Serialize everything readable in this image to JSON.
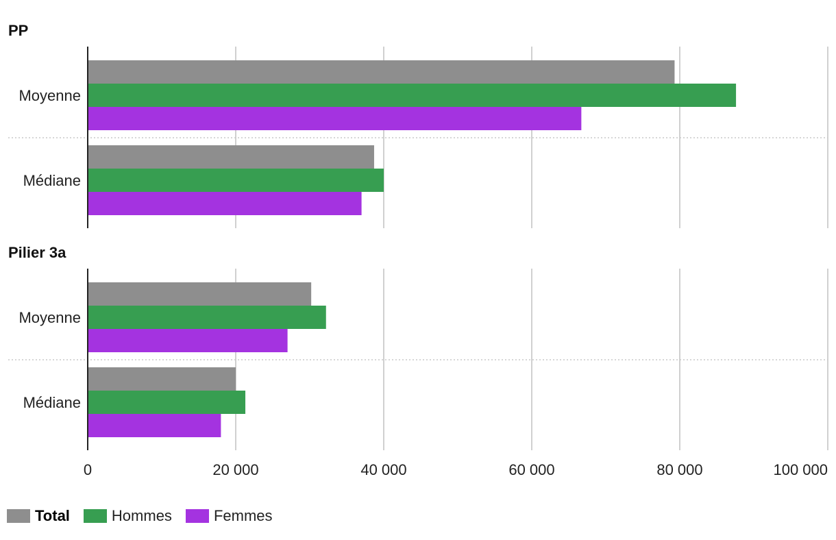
{
  "chart_data": {
    "type": "bar",
    "orientation": "horizontal",
    "panels": [
      {
        "title": "PP",
        "categories": [
          "Moyenne",
          "Médiane"
        ],
        "series": [
          {
            "name": "Total",
            "values": [
              79300,
              38700
            ]
          },
          {
            "name": "Hommes",
            "values": [
              87600,
              40000
            ]
          },
          {
            "name": "Femmes",
            "values": [
              66700,
              37000
            ]
          }
        ]
      },
      {
        "title": "Pilier 3a",
        "categories": [
          "Moyenne",
          "Médiane"
        ],
        "series": [
          {
            "name": "Total",
            "values": [
              30200,
              20000
            ]
          },
          {
            "name": "Hommes",
            "values": [
              32200,
              21300
            ]
          },
          {
            "name": "Femmes",
            "values": [
              27000,
              18000
            ]
          }
        ]
      }
    ],
    "xlim": [
      0,
      100000
    ],
    "xticks": [
      0,
      20000,
      40000,
      60000,
      80000,
      100000
    ],
    "xtick_labels": [
      "0",
      "20 000",
      "40 000",
      "60 000",
      "80 000",
      "100 000"
    ],
    "grid": true,
    "legend_position": "bottom-left"
  },
  "legend": [
    {
      "label": "Total",
      "color": "#8e8e8e"
    },
    {
      "label": "Hommes",
      "color": "#379e51"
    },
    {
      "label": "Femmes",
      "color": "#a433e0"
    }
  ]
}
